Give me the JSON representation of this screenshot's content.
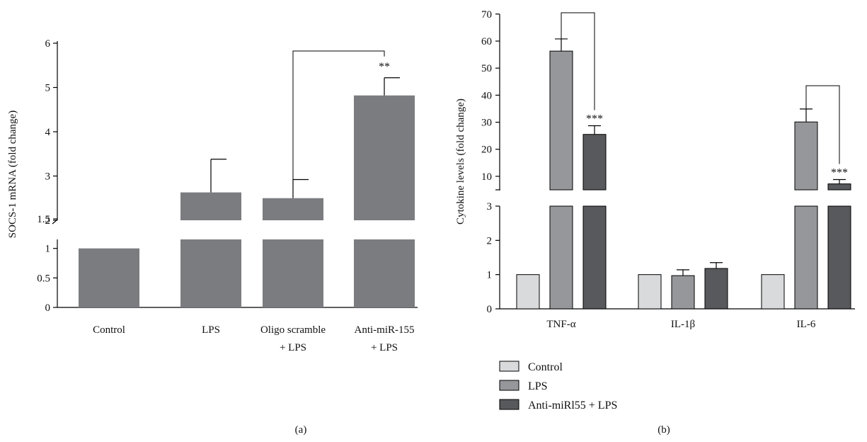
{
  "chart_data": [
    {
      "panel": "(a)",
      "type": "bar",
      "ylabel": "SOCS-1 mRNA (fold change)",
      "axis_break": {
        "lower": [
          0,
          1.5
        ],
        "upper": [
          2,
          6
        ]
      },
      "yticks_lower": [
        "0",
        "0.5",
        "1",
        "1.5"
      ],
      "yticks_upper": [
        "2",
        "3",
        "4",
        "5",
        "6"
      ],
      "categories": [
        {
          "line1": "Control",
          "line2": ""
        },
        {
          "line1": "LPS",
          "line2": ""
        },
        {
          "line1": "Oligo scramble",
          "line2": "+ LPS"
        },
        {
          "line1": "Anti-miR-155",
          "line2": "+ LPS"
        }
      ],
      "values": [
        1.0,
        2.63,
        2.5,
        4.82
      ],
      "errors": [
        0,
        0.75,
        0.42,
        0.4
      ],
      "significance": [
        {
          "category_index": 3,
          "label": "**",
          "bracket_from": 2
        }
      ],
      "color": "#7b7c80"
    },
    {
      "panel": "(b)",
      "type": "bar",
      "ylabel": "Cytokine levels (fold change)",
      "axis_break": {
        "lower": [
          0,
          3
        ],
        "upper": [
          5,
          70
        ]
      },
      "yticks_lower": [
        "0",
        "1",
        "2",
        "3"
      ],
      "yticks_upper": [
        "10",
        "20",
        "30",
        "40",
        "50",
        "60",
        "70"
      ],
      "categories": [
        "TNF-α",
        "IL-1β",
        "IL-6"
      ],
      "series": [
        {
          "name": "Control",
          "color": "#d9dadb",
          "values": [
            1.0,
            1.0,
            1.0
          ],
          "errors": [
            0,
            0,
            0
          ]
        },
        {
          "name": "LPS",
          "color": "#96979b",
          "values": [
            56.3,
            0.97,
            30.1
          ],
          "errors": [
            4.5,
            0.17,
            4.8
          ]
        },
        {
          "name": "Anti-miRl55 + LPS",
          "color": "#58595c",
          "values": [
            25.5,
            1.18,
            7.2
          ],
          "errors": [
            3.2,
            0.17,
            1.6
          ]
        }
      ],
      "significance": [
        {
          "category_index": 0,
          "series_index": 2,
          "label": "***",
          "bracket_from_series": 1
        },
        {
          "category_index": 2,
          "series_index": 2,
          "label": "***",
          "bracket_from_series": 1
        }
      ],
      "legend_position": "bottom-left"
    }
  ]
}
